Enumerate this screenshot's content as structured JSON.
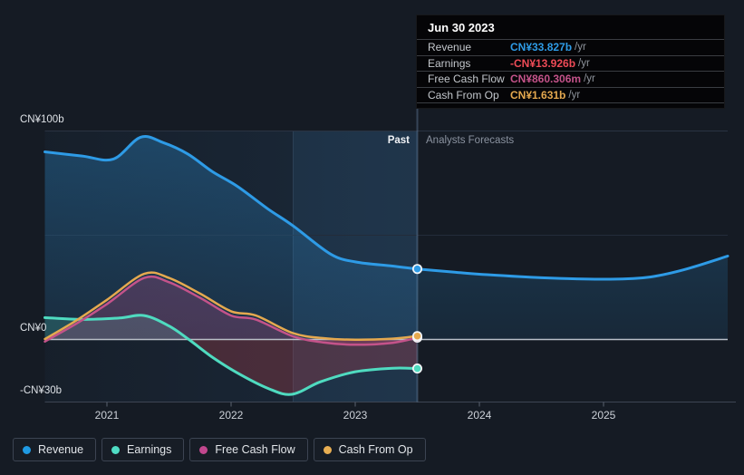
{
  "tooltip": {
    "date": "Jun 30 2023",
    "rows": [
      {
        "label": "Revenue",
        "value": "CN¥33.827b",
        "suffix": "/yr",
        "color": "#2e9be6"
      },
      {
        "label": "Earnings",
        "value": "-CN¥13.926b",
        "suffix": "/yr",
        "color": "#ee4b57"
      },
      {
        "label": "Free Cash Flow",
        "value": "CN¥860.306m",
        "suffix": "/yr",
        "color": "#c4538a"
      },
      {
        "label": "Cash From Op",
        "value": "CN¥1.631b",
        "suffix": "/yr",
        "color": "#e5a94f"
      }
    ]
  },
  "regions": {
    "past_label": "Past",
    "forecast_label": "Analysts Forecasts"
  },
  "legend": {
    "items": [
      {
        "label": "Revenue",
        "color": "#1f9ae3"
      },
      {
        "label": "Earnings",
        "color": "#4fdcc4"
      },
      {
        "label": "Free Cash Flow",
        "color": "#c2478e"
      },
      {
        "label": "Cash From Op",
        "color": "#e8ae52"
      }
    ]
  },
  "chart_data": {
    "type": "line",
    "title": "Past and forecast revenue, earnings and cash flow (CN¥ billions per year)",
    "x_range": [
      2020.5,
      2026.0
    ],
    "past_end": 2023.5,
    "grid": true,
    "x_axis": {
      "ticks": [
        {
          "value": 2021,
          "label": "2021"
        },
        {
          "value": 2022,
          "label": "2022"
        },
        {
          "value": 2023,
          "label": "2023"
        },
        {
          "value": 2024,
          "label": "2024"
        },
        {
          "value": 2025,
          "label": "2025"
        }
      ]
    },
    "y_axis": {
      "ticks": [
        {
          "value": 100,
          "label": "CN¥100b"
        },
        {
          "value": 0,
          "label": "CN¥0"
        },
        {
          "value": -30,
          "label": "-CN¥30b"
        }
      ],
      "unlabeled_gridlines": [
        50
      ],
      "range": [
        -30,
        100
      ]
    },
    "series": [
      {
        "name": "Revenue",
        "color": "#2e9be6",
        "area": "revenue",
        "x": [
          2020.5,
          2020.8,
          2021.05,
          2021.27,
          2021.45,
          2021.65,
          2021.85,
          2022.05,
          2022.3,
          2022.5,
          2022.8,
          2023.0,
          2023.3,
          2023.5,
          2023.8,
          2024.0,
          2024.5,
          2025.0,
          2025.35,
          2025.65,
          2026.0
        ],
        "values": [
          90,
          88,
          86.5,
          97,
          94.5,
          89,
          80.5,
          73.5,
          62.5,
          54.5,
          41,
          37.2,
          35.2,
          33.827,
          32.3,
          31.3,
          29.6,
          28.9,
          29.8,
          33.5,
          40
        ],
        "marker_value": 33.827
      },
      {
        "name": "Earnings",
        "color": "#4fdbc0",
        "negative_color": "#cd414e",
        "area": "signed",
        "x": [
          2020.5,
          2020.8,
          2021.1,
          2021.3,
          2021.5,
          2021.66,
          2021.85,
          2022.05,
          2022.3,
          2022.49,
          2022.72,
          2023.0,
          2023.3,
          2023.5
        ],
        "values": [
          10.5,
          9.6,
          10.3,
          11.5,
          6.5,
          0,
          -8.5,
          -16,
          -23.5,
          -26.3,
          -20.3,
          -15.5,
          -13.8,
          -13.926
        ],
        "marker_value": -13.926
      },
      {
        "name": "Free Cash Flow",
        "color": "#c4538a",
        "area": "plain",
        "x": [
          2020.5,
          2020.75,
          2021.0,
          2021.3,
          2021.5,
          2021.75,
          2022.0,
          2022.2,
          2022.5,
          2022.75,
          2023.0,
          2023.3,
          2023.5
        ],
        "values": [
          -1,
          7.5,
          17,
          29.5,
          27.5,
          20,
          11.5,
          9.5,
          1.5,
          -1.5,
          -2.5,
          -1.6,
          0.86
        ],
        "marker_value": 0.86
      },
      {
        "name": "Cash From Op",
        "color": "#e5a94f",
        "area": "none",
        "x": [
          2020.5,
          2020.75,
          2021.0,
          2021.3,
          2021.5,
          2021.75,
          2022.0,
          2022.2,
          2022.5,
          2022.75,
          2023.0,
          2023.3,
          2023.5
        ],
        "values": [
          0.2,
          9,
          19,
          31.5,
          29.5,
          22,
          13.5,
          11.5,
          3,
          0.6,
          -0.1,
          0.4,
          1.631
        ],
        "marker_value": 1.631
      }
    ]
  }
}
